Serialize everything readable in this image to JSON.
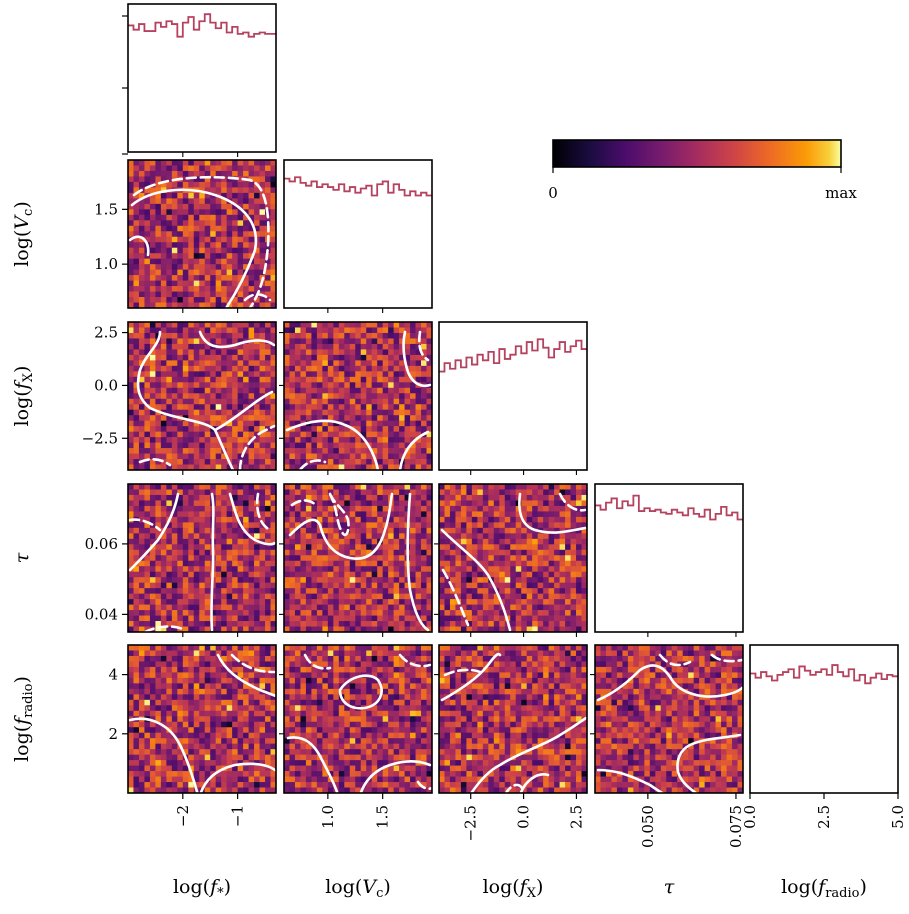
{
  "chart_data": {
    "type": "corner",
    "parameters": [
      {
        "key": "fstar",
        "label_base": "log(",
        "label_sym": "f",
        "label_sub": "*",
        "label_end": ")",
        "range": [
          -3.0,
          -0.3
        ],
        "ticks": [
          -2,
          -1
        ],
        "tick_labels": [
          "−2",
          "−1"
        ]
      },
      {
        "key": "Vc",
        "label_base": "log(",
        "label_sym": "V",
        "label_sub": "c",
        "label_end": ")",
        "range": [
          0.6,
          1.95
        ],
        "ticks": [
          1.0,
          1.5
        ],
        "tick_labels": [
          "1.0",
          "1.5"
        ]
      },
      {
        "key": "fX",
        "label_base": "log(",
        "label_sym": "f",
        "label_sub": "X",
        "label_end": ")",
        "range": [
          -4.0,
          3.0
        ],
        "ticks": [
          -2.5,
          0.0,
          2.5
        ],
        "tick_labels": [
          "−2.5",
          "0.0",
          "2.5"
        ]
      },
      {
        "key": "tau",
        "label_base": "",
        "label_sym": "τ",
        "label_sub": "",
        "label_end": "",
        "range": [
          0.035,
          0.077
        ],
        "ticks": [
          0.04,
          0.06
        ],
        "tick_labels": [
          "0.04",
          "0.06"
        ],
        "x_ticks": [
          0.05,
          0.075
        ],
        "x_tick_labels": [
          "0.050",
          "0.075"
        ]
      },
      {
        "key": "fradio",
        "label_base": "log(",
        "label_sym": "f",
        "label_sub": "radio",
        "label_end": ")",
        "range": [
          0.0,
          5.0
        ],
        "ticks": [
          2,
          4
        ],
        "tick_labels": [
          "2",
          "4"
        ],
        "x_ticks": [
          0.0,
          2.5,
          5.0
        ],
        "x_tick_labels": [
          "0.0",
          "2.5",
          "5.0"
        ]
      }
    ],
    "marginals": [
      [
        0.9,
        0.87,
        0.91,
        0.86,
        0.86,
        0.92,
        0.89,
        0.93,
        0.91,
        0.82,
        0.92,
        0.96,
        0.87,
        0.93,
        0.98,
        0.92,
        0.88,
        0.92,
        0.85,
        0.89,
        0.84,
        0.85,
        0.82,
        0.84,
        0.85,
        0.84,
        0.84
      ],
      [
        0.92,
        0.9,
        0.93,
        0.89,
        0.87,
        0.9,
        0.86,
        0.88,
        0.86,
        0.84,
        0.88,
        0.83,
        0.86,
        0.82,
        0.85,
        0.87,
        0.8,
        0.88,
        0.9,
        0.82,
        0.88,
        0.84,
        0.8,
        0.83,
        0.8,
        0.82,
        0.8
      ],
      [
        0.7,
        0.76,
        0.72,
        0.78,
        0.73,
        0.8,
        0.75,
        0.82,
        0.78,
        0.84,
        0.76,
        0.86,
        0.79,
        0.82,
        0.88,
        0.83,
        0.91,
        0.85,
        0.93,
        0.87,
        0.8,
        0.86,
        0.91,
        0.84,
        0.88,
        0.92,
        0.86
      ],
      [
        0.9,
        0.87,
        0.92,
        0.95,
        0.88,
        0.93,
        0.9,
        0.97,
        0.86,
        0.88,
        0.86,
        0.87,
        0.85,
        0.84,
        0.87,
        0.85,
        0.83,
        0.88,
        0.84,
        0.82,
        0.87,
        0.8,
        0.84,
        0.89,
        0.83,
        0.85,
        0.8
      ],
      [
        0.85,
        0.82,
        0.86,
        0.83,
        0.8,
        0.84,
        0.86,
        0.88,
        0.82,
        0.9,
        0.87,
        0.84,
        0.86,
        0.88,
        0.84,
        0.91,
        0.86,
        0.83,
        0.88,
        0.8,
        0.84,
        0.78,
        0.82,
        0.85,
        0.81,
        0.84,
        0.83
      ]
    ],
    "colorbar": {
      "colormap": "inferno",
      "min_label": "0",
      "max_label": "max"
    },
    "contours": {
      "levels": [
        "solid",
        "dashed"
      ],
      "color": "#ffffff"
    },
    "histogram_color": "#b5435f",
    "grid": false
  }
}
